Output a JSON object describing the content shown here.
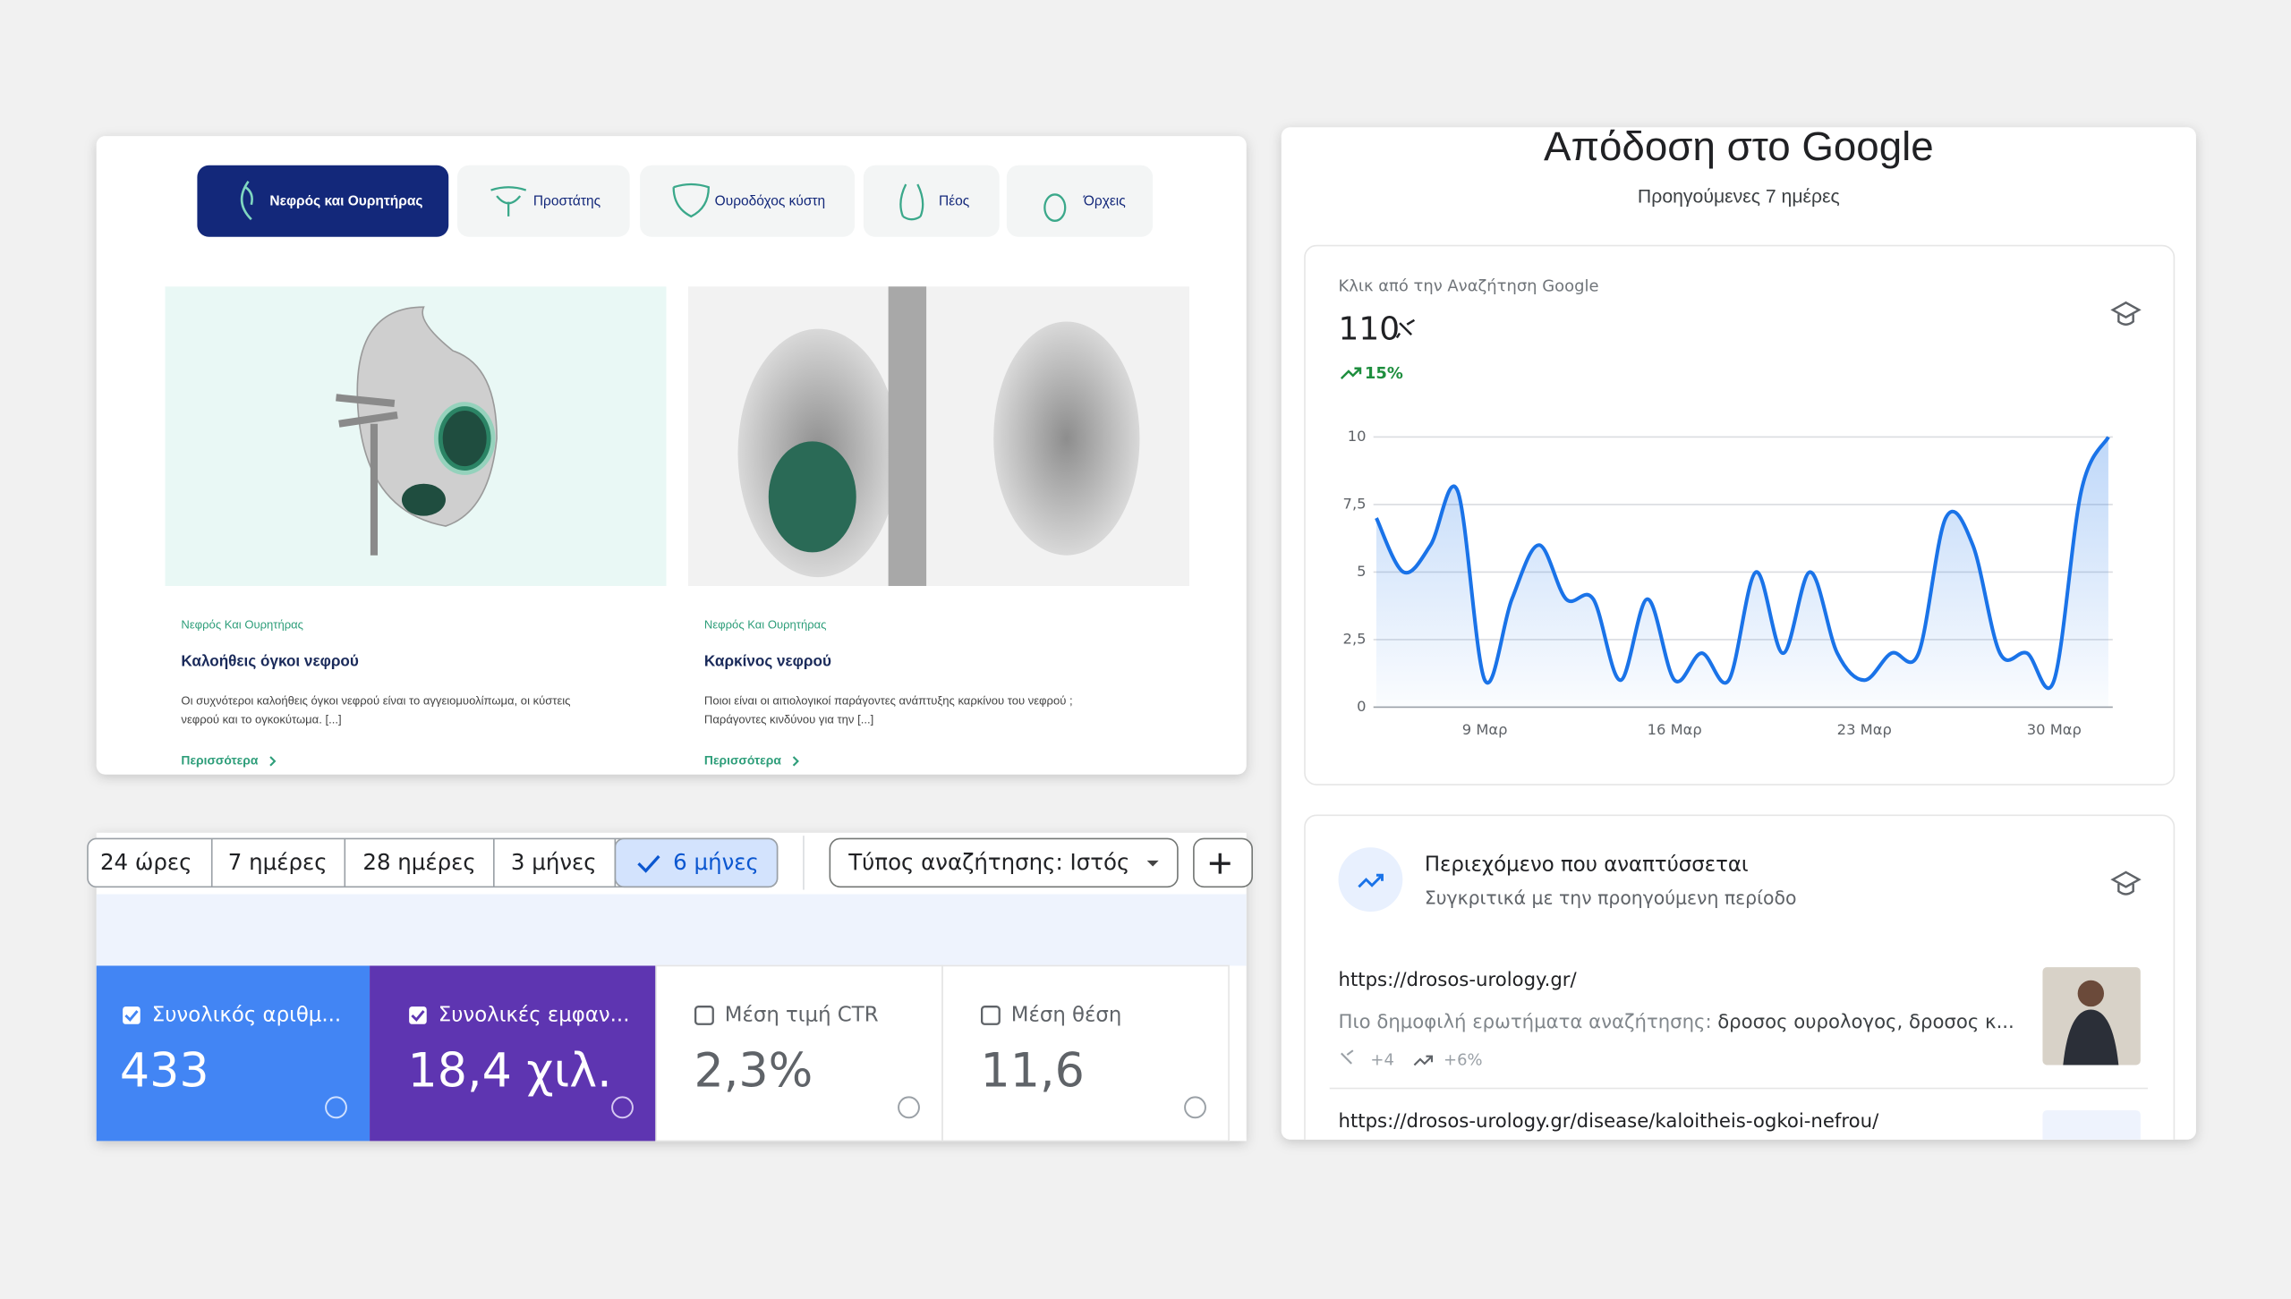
{
  "website": {
    "tabs": [
      "Νεφρός και Ουρητήρας",
      "Προστάτης",
      "Ουροδόχος κύστη",
      "Πέος",
      "Όρχεις"
    ],
    "cards": [
      {
        "category": "Νεφρός Και Ουρητήρας",
        "title": "Καλοήθεις όγκοι νεφρού",
        "excerpt_lines": [
          "Οι συχνότεροι καλοήθεις όγκοι νεφρού είναι το αγγειομυολίπωμα, οι κύστεις",
          "νεφρού και το ογκοκύτωμα. [...]"
        ],
        "more": "Περισσότερα"
      },
      {
        "category": "Νεφρός Και Ουρητήρας",
        "title": "Καρκίνος νεφρού",
        "excerpt_lines": [
          "Ποιοι είναι οι αιτιολογικοί παράγοντες ανάπτυξης καρκίνου του νεφρού ;",
          "Παράγοντες κινδύνου για την [...]"
        ],
        "more": "Περισσότερα"
      }
    ]
  },
  "search_console": {
    "ranges": [
      "24 ώρες",
      "7 ημέρες",
      "28 ημέρες",
      "3 μήνες",
      "6 μήνες"
    ],
    "search_type": "Τύπος αναζήτησης: Ιστός",
    "metrics": [
      {
        "label": "Συνολικός αριθμ...",
        "value": "433"
      },
      {
        "label": "Συνολικές εμφαν...",
        "value": "18,4 χιλ."
      },
      {
        "label": "Μέση τιμή CTR",
        "value": "2,3%"
      },
      {
        "label": "Μέση θέση",
        "value": "11,6"
      }
    ]
  },
  "performance": {
    "title": "Απόδοση στο Google",
    "subtitle": "Προηγούμενες 7 ημέρες",
    "clicks_label": "Κλικ από την Αναζήτηση Google",
    "clicks": "110",
    "change": "15%",
    "content_title": "Περιεχόμενο που αναπτύσσεται",
    "content_subtitle": "Συγκριτικά με την προηγούμενη περίοδο",
    "items": [
      {
        "url": "https://drosos-urology.gr/",
        "queries_label": "Πιο δημοφιλή ερωτήματα αναζήτησης:",
        "queries": "δροσος ουρολογος, δροσος κ...",
        "clicks": "+4",
        "change": "+6%"
      },
      {
        "url": "https://drosos-urology.gr/disease/kaloitheis-ogkoi-nefrou/"
      }
    ]
  },
  "chart_data": {
    "type": "line",
    "categories": [
      null,
      null,
      null,
      null,
      "9 Μαρ",
      null,
      null,
      null,
      null,
      null,
      null,
      "16 Μαρ",
      null,
      null,
      null,
      null,
      null,
      null,
      "23 Μαρ",
      null,
      null,
      null,
      null,
      null,
      null,
      "30 Μαρ",
      null,
      null
    ],
    "values": [
      7,
      5,
      6,
      8,
      1,
      4,
      6,
      4,
      4,
      1,
      4,
      1,
      2,
      1,
      5,
      2,
      5,
      2,
      1,
      2,
      2,
      7,
      6,
      2,
      2,
      1,
      8,
      10
    ],
    "color": "#1a73e8",
    "ylim": [
      0,
      10
    ],
    "yticks": [
      0,
      {
        "value": 2.5,
        "label": "2,5"
      },
      5,
      {
        "value": 7.5,
        "label": "7,5"
      },
      10
    ],
    "grid": true
  }
}
